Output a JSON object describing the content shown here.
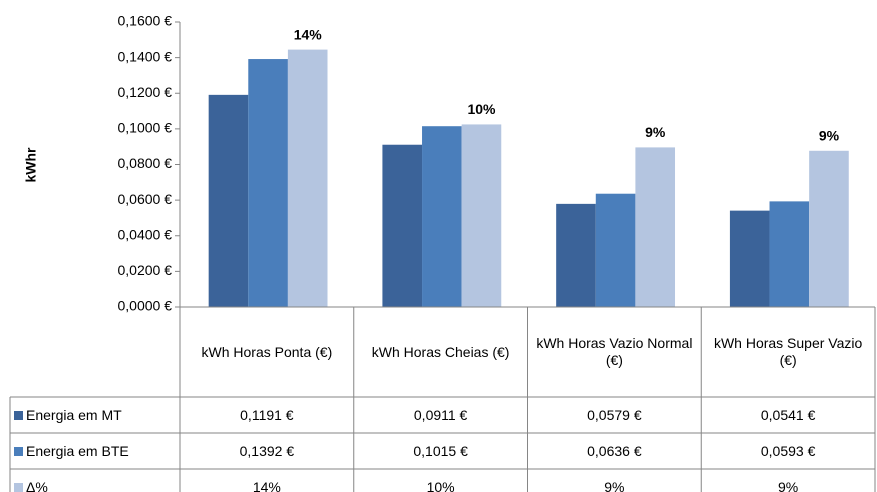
{
  "chart_data": {
    "type": "bar",
    "y_label": "kWhr",
    "categories": [
      "kWh Horas Ponta (€)",
      "kWh Horas Cheias (€)",
      "kWh Horas Vazio Normal (€)",
      "kWh Horas Super Vazio (€)"
    ],
    "series": [
      {
        "name": "Energia em MT",
        "color": "#3b6399",
        "values": [
          0.1191,
          0.0911,
          0.0579,
          0.0541
        ],
        "value_labels": [
          "0,1191 €",
          "0,0911 €",
          "0,0579 €",
          "0,0541 €"
        ]
      },
      {
        "name": "Energia em BTE",
        "color": "#4a7ebb",
        "values": [
          0.1392,
          0.1015,
          0.0636,
          0.0593
        ],
        "value_labels": [
          "0,1392 €",
          "0,1015 €",
          "0,0636 €",
          "0,0593 €"
        ]
      },
      {
        "name": "Δ%",
        "color": "#b4c5e0",
        "values": [
          0.1445,
          0.1025,
          0.0896,
          0.0877
        ],
        "value_labels": [
          "14%",
          "10%",
          "9%",
          "9%"
        ],
        "show_labels": true
      }
    ],
    "ylim": [
      0,
      0.16
    ],
    "yticks": [
      {
        "value": 0,
        "label": "0,0000 €"
      },
      {
        "value": 0.02,
        "label": "0,0200 €"
      },
      {
        "value": 0.04,
        "label": "0,0400 €"
      },
      {
        "value": 0.06,
        "label": "0,0600 €"
      },
      {
        "value": 0.08,
        "label": "0,0800 €"
      },
      {
        "value": 0.1,
        "label": "0,1000 €"
      },
      {
        "value": 0.12,
        "label": "0,1200 €"
      },
      {
        "value": 0.14,
        "label": "0,1400 €"
      },
      {
        "value": 0.16,
        "label": "0,1600 €"
      }
    ],
    "data_table": true
  }
}
